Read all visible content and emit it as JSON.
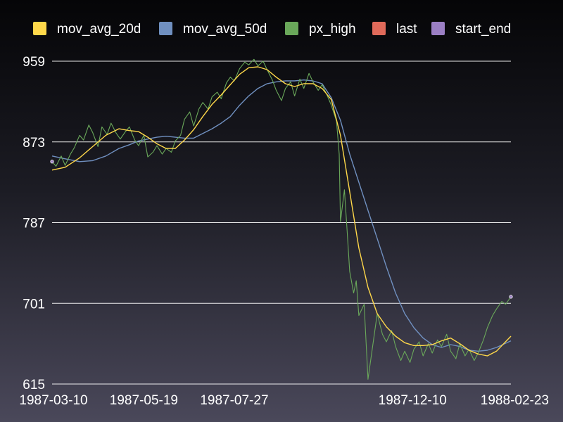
{
  "chart_data": {
    "type": "line",
    "title": "",
    "xlabel": "",
    "ylabel": "",
    "ylim": [
      615,
      959
    ],
    "xlim": [
      "1987-03-10",
      "1988-02-23"
    ],
    "grid": "horizontal",
    "legend_position": "top",
    "y_ticks": [
      "615",
      "701",
      "787",
      "873",
      "959"
    ],
    "x_ticks": [
      "1987-03-10",
      "1987-05-19",
      "1987-07-27",
      "1987-12-10",
      "1988-02-23"
    ],
    "series": [
      {
        "name": "mov_avg_20d",
        "color": "#ffd84a",
        "points": [
          [
            "1987-03-10",
            843
          ],
          [
            "1987-03-20",
            846
          ],
          [
            "1987-03-31",
            856
          ],
          [
            "1987-04-10",
            868
          ],
          [
            "1987-04-20",
            880
          ],
          [
            "1987-04-30",
            887
          ],
          [
            "1987-05-08",
            885
          ],
          [
            "1987-05-15",
            884
          ],
          [
            "1987-05-22",
            878
          ],
          [
            "1987-05-29",
            871
          ],
          [
            "1987-06-05",
            866
          ],
          [
            "1987-06-12",
            866
          ],
          [
            "1987-06-19",
            875
          ],
          [
            "1987-06-26",
            886
          ],
          [
            "1987-07-03",
            900
          ],
          [
            "1987-07-10",
            913
          ],
          [
            "1987-07-17",
            923
          ],
          [
            "1987-07-24",
            934
          ],
          [
            "1987-07-31",
            945
          ],
          [
            "1987-08-07",
            952
          ],
          [
            "1987-08-14",
            953
          ],
          [
            "1987-08-21",
            950
          ],
          [
            "1987-08-28",
            942
          ],
          [
            "1987-09-04",
            935
          ],
          [
            "1987-09-11",
            932
          ],
          [
            "1987-09-18",
            935
          ],
          [
            "1987-09-25",
            935
          ],
          [
            "1987-10-02",
            930
          ],
          [
            "1987-10-09",
            918
          ],
          [
            "1987-10-16",
            880
          ],
          [
            "1987-10-23",
            820
          ],
          [
            "1987-10-30",
            760
          ],
          [
            "1987-11-06",
            718
          ],
          [
            "1987-11-13",
            690
          ],
          [
            "1987-11-20",
            676
          ],
          [
            "1987-11-27",
            666
          ],
          [
            "1987-12-04",
            659
          ],
          [
            "1987-12-11",
            656
          ],
          [
            "1987-12-18",
            656
          ],
          [
            "1987-12-25",
            657
          ],
          [
            "1988-01-01",
            661
          ],
          [
            "1988-01-08",
            664
          ],
          [
            "1988-01-15",
            658
          ],
          [
            "1988-01-22",
            651
          ],
          [
            "1988-01-29",
            647
          ],
          [
            "1988-02-05",
            645
          ],
          [
            "1988-02-12",
            650
          ],
          [
            "1988-02-23",
            666
          ]
        ]
      },
      {
        "name": "mov_avg_50d",
        "color": "#7090c0",
        "points": [
          [
            "1987-03-10",
            858
          ],
          [
            "1987-03-20",
            855
          ],
          [
            "1987-03-31",
            852
          ],
          [
            "1987-04-10",
            853
          ],
          [
            "1987-04-20",
            858
          ],
          [
            "1987-04-30",
            866
          ],
          [
            "1987-05-08",
            870
          ],
          [
            "1987-05-15",
            874
          ],
          [
            "1987-05-22",
            876
          ],
          [
            "1987-05-29",
            878
          ],
          [
            "1987-06-05",
            879
          ],
          [
            "1987-06-12",
            878
          ],
          [
            "1987-06-19",
            877
          ],
          [
            "1987-06-26",
            877
          ],
          [
            "1987-07-03",
            882
          ],
          [
            "1987-07-10",
            887
          ],
          [
            "1987-07-17",
            893
          ],
          [
            "1987-07-24",
            900
          ],
          [
            "1987-07-31",
            912
          ],
          [
            "1987-08-07",
            922
          ],
          [
            "1987-08-14",
            930
          ],
          [
            "1987-08-21",
            935
          ],
          [
            "1987-08-28",
            937
          ],
          [
            "1987-09-04",
            938
          ],
          [
            "1987-09-11",
            938
          ],
          [
            "1987-09-18",
            939
          ],
          [
            "1987-09-25",
            938
          ],
          [
            "1987-10-02",
            935
          ],
          [
            "1987-10-09",
            920
          ],
          [
            "1987-10-16",
            896
          ],
          [
            "1987-10-23",
            860
          ],
          [
            "1987-10-30",
            830
          ],
          [
            "1987-11-06",
            800
          ],
          [
            "1987-11-13",
            770
          ],
          [
            "1987-11-20",
            740
          ],
          [
            "1987-11-27",
            712
          ],
          [
            "1987-12-04",
            690
          ],
          [
            "1987-12-11",
            675
          ],
          [
            "1987-12-18",
            664
          ],
          [
            "1987-12-25",
            657
          ],
          [
            "1988-01-01",
            654
          ],
          [
            "1988-01-08",
            657
          ],
          [
            "1988-01-15",
            655
          ],
          [
            "1988-01-22",
            651
          ],
          [
            "1988-01-29",
            650
          ],
          [
            "1988-02-05",
            651
          ],
          [
            "1988-02-12",
            654
          ],
          [
            "1988-02-23",
            661
          ]
        ]
      },
      {
        "name": "px_high",
        "color": "#6aa85a",
        "points": [
          [
            "1987-03-10",
            852
          ],
          [
            "1987-03-13",
            847
          ],
          [
            "1987-03-17",
            858
          ],
          [
            "1987-03-20",
            848
          ],
          [
            "1987-03-24",
            860
          ],
          [
            "1987-03-27",
            867
          ],
          [
            "1987-03-31",
            880
          ],
          [
            "1987-04-03",
            875
          ],
          [
            "1987-04-07",
            891
          ],
          [
            "1987-04-10",
            883
          ],
          [
            "1987-04-14",
            868
          ],
          [
            "1987-04-17",
            889
          ],
          [
            "1987-04-21",
            881
          ],
          [
            "1987-04-24",
            893
          ],
          [
            "1987-04-28",
            882
          ],
          [
            "1987-05-01",
            876
          ],
          [
            "1987-05-05",
            884
          ],
          [
            "1987-05-08",
            889
          ],
          [
            "1987-05-12",
            875
          ],
          [
            "1987-05-15",
            869
          ],
          [
            "1987-05-19",
            880
          ],
          [
            "1987-05-22",
            857
          ],
          [
            "1987-05-26",
            862
          ],
          [
            "1987-05-29",
            869
          ],
          [
            "1987-06-02",
            860
          ],
          [
            "1987-06-05",
            866
          ],
          [
            "1987-06-09",
            862
          ],
          [
            "1987-06-12",
            874
          ],
          [
            "1987-06-16",
            880
          ],
          [
            "1987-06-19",
            897
          ],
          [
            "1987-06-23",
            905
          ],
          [
            "1987-06-26",
            890
          ],
          [
            "1987-06-30",
            908
          ],
          [
            "1987-07-03",
            915
          ],
          [
            "1987-07-07",
            908
          ],
          [
            "1987-07-10",
            921
          ],
          [
            "1987-07-14",
            926
          ],
          [
            "1987-07-17",
            919
          ],
          [
            "1987-07-21",
            936
          ],
          [
            "1987-07-24",
            942
          ],
          [
            "1987-07-27",
            938
          ],
          [
            "1987-07-31",
            951
          ],
          [
            "1987-08-04",
            958
          ],
          [
            "1987-08-07",
            955
          ],
          [
            "1987-08-11",
            961
          ],
          [
            "1987-08-14",
            954
          ],
          [
            "1987-08-18",
            959
          ],
          [
            "1987-08-21",
            950
          ],
          [
            "1987-08-25",
            939
          ],
          [
            "1987-08-28",
            928
          ],
          [
            "1987-09-01",
            917
          ],
          [
            "1987-09-04",
            930
          ],
          [
            "1987-09-08",
            937
          ],
          [
            "1987-09-11",
            922
          ],
          [
            "1987-09-15",
            940
          ],
          [
            "1987-09-18",
            930
          ],
          [
            "1987-09-22",
            946
          ],
          [
            "1987-09-25",
            937
          ],
          [
            "1987-09-29",
            928
          ],
          [
            "1987-10-02",
            934
          ],
          [
            "1987-10-06",
            922
          ],
          [
            "1987-10-09",
            912
          ],
          [
            "1987-10-13",
            895
          ],
          [
            "1987-10-15",
            860
          ],
          [
            "1987-10-16",
            788
          ],
          [
            "1987-10-19",
            822
          ],
          [
            "1987-10-21",
            780
          ],
          [
            "1987-10-23",
            735
          ],
          [
            "1987-10-26",
            712
          ],
          [
            "1987-10-28",
            725
          ],
          [
            "1987-10-30",
            688
          ],
          [
            "1987-11-03",
            700
          ],
          [
            "1987-11-06",
            620
          ],
          [
            "1987-11-10",
            660
          ],
          [
            "1987-11-13",
            690
          ],
          [
            "1987-11-17",
            668
          ],
          [
            "1987-11-20",
            660
          ],
          [
            "1987-11-24",
            672
          ],
          [
            "1987-11-27",
            655
          ],
          [
            "1987-12-01",
            640
          ],
          [
            "1987-12-04",
            650
          ],
          [
            "1987-12-08",
            638
          ],
          [
            "1987-12-11",
            652
          ],
          [
            "1987-12-15",
            660
          ],
          [
            "1987-12-18",
            645
          ],
          [
            "1987-12-22",
            658
          ],
          [
            "1987-12-25",
            648
          ],
          [
            "1987-12-29",
            662
          ],
          [
            "1988-01-01",
            655
          ],
          [
            "1988-01-05",
            668
          ],
          [
            "1988-01-08",
            650
          ],
          [
            "1988-01-12",
            642
          ],
          [
            "1988-01-15",
            658
          ],
          [
            "1988-01-19",
            645
          ],
          [
            "1988-01-22",
            652
          ],
          [
            "1988-01-26",
            640
          ],
          [
            "1988-01-29",
            648
          ],
          [
            "1988-02-02",
            662
          ],
          [
            "1988-02-05",
            675
          ],
          [
            "1988-02-09",
            688
          ],
          [
            "1988-02-12",
            695
          ],
          [
            "1988-02-16",
            703
          ],
          [
            "1988-02-19",
            700
          ],
          [
            "1988-02-23",
            708
          ]
        ]
      },
      {
        "name": "last",
        "color": "#e06a5a",
        "points": []
      },
      {
        "name": "start_end",
        "color": "#9b7fc4",
        "points": [
          [
            "1987-03-10",
            852
          ],
          [
            "1988-02-23",
            708
          ]
        ]
      }
    ]
  }
}
